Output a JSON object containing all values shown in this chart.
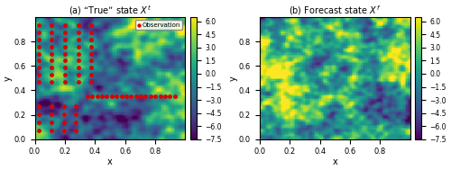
{
  "title_a": "(a) “True” state $X^t$",
  "title_b": "(b) Forecast state $X^f$",
  "xlabel": "x",
  "ylabel": "y",
  "vmin": -7.5,
  "vmax": 6.5,
  "colormap": "viridis",
  "obs_color": "#dd0000",
  "obs_label": "Observation",
  "obs_marker": "o",
  "obs_markersize": 3.5,
  "grid_size": 100,
  "seed_true": 7,
  "seed_forecast": 13,
  "colorbar_ticks": [
    6.0,
    4.5,
    3.0,
    1.5,
    0.0,
    -1.5,
    -3.0,
    -4.5,
    -6.0,
    -7.5
  ],
  "figsize": [
    5.0,
    1.89
  ],
  "dpi": 100
}
